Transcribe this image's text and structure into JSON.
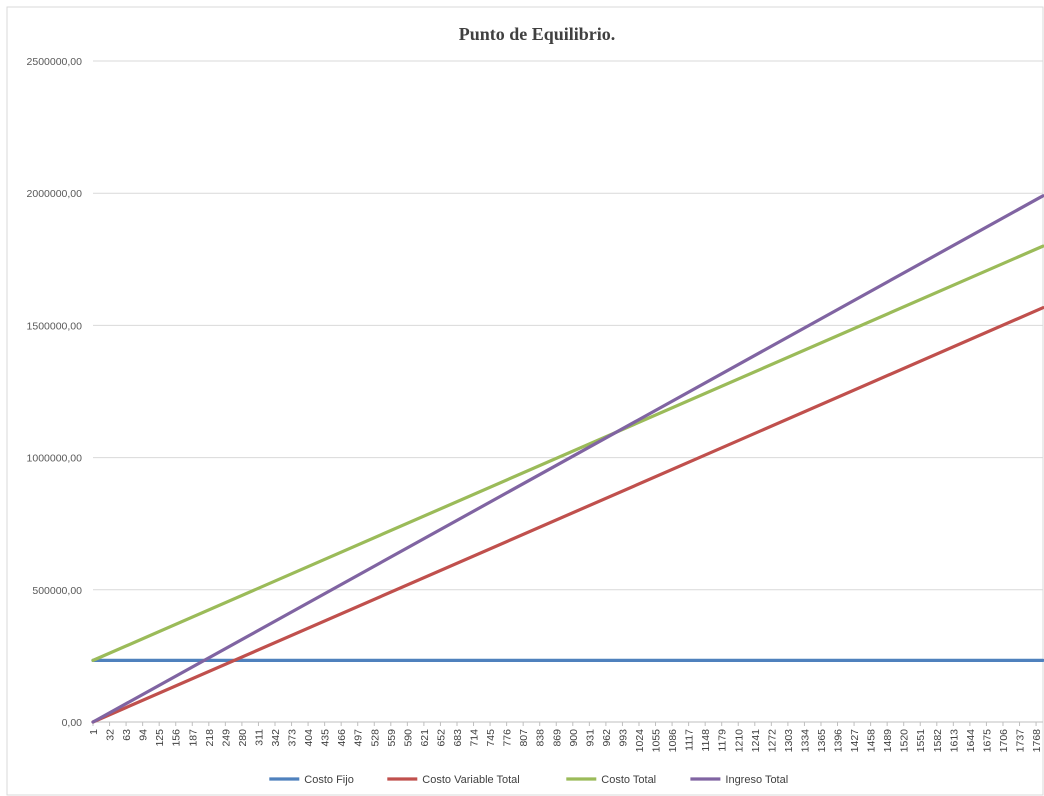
{
  "chart_data": {
    "type": "line",
    "title": "Punto de Equilibrio.",
    "xlabel": "",
    "ylabel": "",
    "ylim": [
      0,
      2500000
    ],
    "yticks": [
      {
        "value": 0,
        "label": "0,00"
      },
      {
        "value": 500000,
        "label": "500000,00"
      },
      {
        "value": 1000000,
        "label": "1000000,00"
      },
      {
        "value": 1500000,
        "label": "1500000,00"
      },
      {
        "value": 2000000,
        "label": "2000000,00"
      },
      {
        "value": 2500000,
        "label": "2500000,00"
      }
    ],
    "xlim": [
      1,
      1781
    ],
    "xticks": [
      1,
      32,
      63,
      94,
      125,
      156,
      187,
      218,
      249,
      280,
      311,
      342,
      373,
      404,
      435,
      466,
      497,
      528,
      559,
      590,
      621,
      652,
      683,
      714,
      745,
      776,
      807,
      838,
      869,
      900,
      931,
      962,
      993,
      1024,
      1055,
      1086,
      1117,
      1148,
      1179,
      1210,
      1241,
      1272,
      1303,
      1334,
      1365,
      1396,
      1427,
      1458,
      1489,
      1520,
      1551,
      1582,
      1613,
      1644,
      1675,
      1706,
      1737,
      1768
    ],
    "grid": true,
    "legend_position": "bottom",
    "series": [
      {
        "name": "Costo Fijo",
        "color": "#4F81BD",
        "x": [
          1,
          1781
        ],
        "values": [
          233000,
          233000
        ]
      },
      {
        "name": "Costo Variable Total",
        "color": "#C0504D",
        "x": [
          1,
          1781
        ],
        "values": [
          0,
          1567000
        ]
      },
      {
        "name": "Costo Total",
        "color": "#9BBB59",
        "x": [
          1,
          1781
        ],
        "values": [
          233000,
          1800000
        ]
      },
      {
        "name": "Ingreso Total",
        "color": "#8064A2",
        "x": [
          1,
          1781
        ],
        "values": [
          0,
          1990000
        ]
      }
    ]
  }
}
